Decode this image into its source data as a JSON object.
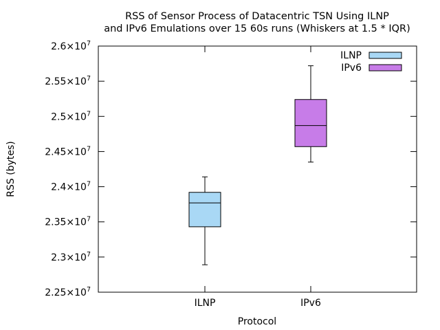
{
  "chart_data": {
    "type": "boxplot",
    "title_lines": [
      "RSS of Sensor Process of Datacentric TSN Using ILNP",
      "and IPv6 Emulations over 15 60s runs (Whiskers at 1.5 * IQR)"
    ],
    "xlabel": "Protocol",
    "ylabel": "RSS (bytes)",
    "ylim": [
      22500000,
      26000000
    ],
    "y_ticks": [
      {
        "value": 22500000,
        "mantissa": "2.25",
        "times": "×",
        "base": "10",
        "exp": "7"
      },
      {
        "value": 23000000,
        "mantissa": "2.3",
        "times": "×",
        "base": "10",
        "exp": "7"
      },
      {
        "value": 23500000,
        "mantissa": "2.35",
        "times": "×",
        "base": "10",
        "exp": "7"
      },
      {
        "value": 24000000,
        "mantissa": "2.4",
        "times": "×",
        "base": "10",
        "exp": "7"
      },
      {
        "value": 24500000,
        "mantissa": "2.45",
        "times": "×",
        "base": "10",
        "exp": "7"
      },
      {
        "value": 25000000,
        "mantissa": "2.5",
        "times": "×",
        "base": "10",
        "exp": "7"
      },
      {
        "value": 25500000,
        "mantissa": "2.55",
        "times": "×",
        "base": "10",
        "exp": "7"
      },
      {
        "value": 26000000,
        "mantissa": "2.6",
        "times": "×",
        "base": "10",
        "exp": "7"
      }
    ],
    "categories": [
      "ILNP",
      "IPv6"
    ],
    "series": [
      {
        "name": "ILNP",
        "color": "#a9d8f5",
        "min": 22890000,
        "q1": 23430000,
        "median": 23770000,
        "q3": 23920000,
        "max": 24140000
      },
      {
        "name": "IPv6",
        "color": "#c77ce8",
        "min": 24350000,
        "q1": 24570000,
        "median": 24870000,
        "q3": 25240000,
        "max": 25720000
      }
    ],
    "grid": false,
    "legend_position": "top-right"
  }
}
